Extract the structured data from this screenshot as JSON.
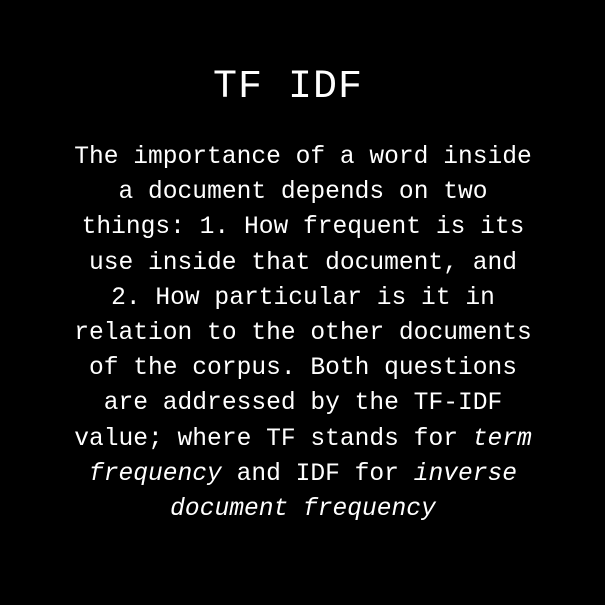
{
  "slide": {
    "title": "TF IDF",
    "lines": [
      "The importance of a word inside",
      "a document depends on two",
      "things: 1. How frequent is its",
      "use inside that document, and",
      "2. How particular is it in",
      "relation to the other documents",
      "of the corpus. Both questions",
      "are addressed by the TF-IDF",
      "value; where TF stands for "
    ],
    "term_frequency": "term",
    "term_frequency_2": "frequency",
    "and_idf_for": " and IDF for ",
    "inverse": "inverse",
    "document_frequency": "document frequency"
  }
}
